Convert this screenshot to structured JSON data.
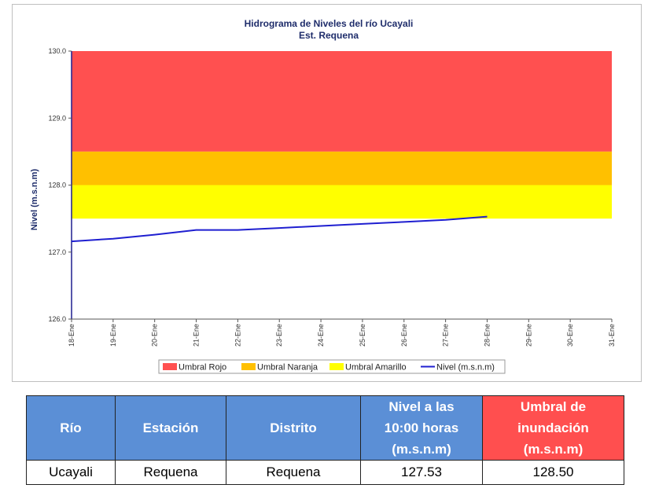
{
  "chart_data": {
    "type": "line",
    "title": "Hidrograma de Niveles del río Ucayali",
    "subtitle": "Est. Requena",
    "ylabel": "Nivel (m.s.n.m)",
    "xlabel": "",
    "ylim": [
      126.0,
      130.0
    ],
    "y_ticks": [
      "126.0",
      "127.0",
      "128.0",
      "129.0",
      "130.0"
    ],
    "categories": [
      "18-Ene",
      "19-Ene",
      "20-Ene",
      "21-Ene",
      "22-Ene",
      "23-Ene",
      "24-Ene",
      "25-Ene",
      "26-Ene",
      "27-Ene",
      "28-Ene",
      "29-Ene",
      "30-Ene",
      "31-Ene"
    ],
    "bands": [
      {
        "name": "Umbral Rojo",
        "from": 128.5,
        "to": 130.0,
        "color": "#ff5050"
      },
      {
        "name": "Umbral Naranja",
        "from": 128.0,
        "to": 128.5,
        "color": "#ffc000"
      },
      {
        "name": "Umbral Amarillo",
        "from": 127.5,
        "to": 128.0,
        "color": "#ffff00"
      }
    ],
    "series": [
      {
        "name": "Nivel (m.s.n.m)",
        "color": "#1f1fd0",
        "x": [
          0,
          1,
          2,
          3,
          4,
          5,
          6,
          7,
          8,
          9,
          10
        ],
        "values": [
          127.16,
          127.2,
          127.26,
          127.33,
          127.33,
          127.36,
          127.39,
          127.42,
          127.45,
          127.48,
          127.53
        ]
      }
    ],
    "legend": [
      "Umbral Rojo",
      "Umbral Naranja",
      "Umbral Amarillo",
      "Nivel (m.s.n.m)"
    ],
    "legend_position": "bottom",
    "grid": false
  },
  "table": {
    "headers": {
      "rio": "Río",
      "estacion": "Estación",
      "distrito": "Distrito",
      "nivel": [
        "Nivel a las",
        "10:00 horas",
        "(m.s.n.m)"
      ],
      "umbral": [
        "Umbral de",
        "inundación",
        "(m.s.n.m)"
      ]
    },
    "row": {
      "rio": "Ucayali",
      "estacion": "Requena",
      "distrito": "Requena",
      "nivel": "127.53",
      "umbral": "128.50"
    }
  }
}
